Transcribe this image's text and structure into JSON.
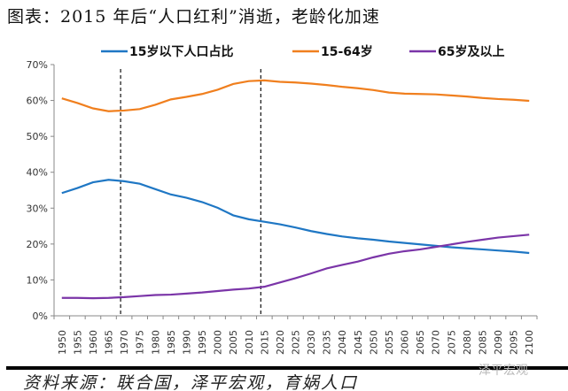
{
  "title": "图表：2015 年后“人口红利”消逝，老龄化加速",
  "source": "资料来源：联合国，泽平宏观，育娲人口",
  "watermark": "泽平宏观",
  "chart_data": {
    "type": "line",
    "title": "",
    "xlabel": "",
    "ylabel": "",
    "ylim": [
      0,
      70
    ],
    "yticks": [
      "0%",
      "10%",
      "20%",
      "30%",
      "40%",
      "50%",
      "60%",
      "70%"
    ],
    "grid": false,
    "legend": "top",
    "categories": [
      "1950",
      "1955",
      "1960",
      "1965",
      "1970",
      "1975",
      "1980",
      "1985",
      "1990",
      "1995",
      "2000",
      "2005",
      "2010",
      "2015",
      "2020",
      "2025",
      "2030",
      "2035",
      "2040",
      "2045",
      "2050",
      "2055",
      "2060",
      "2065",
      "2070",
      "2075",
      "2080",
      "2085",
      "2090",
      "2095",
      "2100"
    ],
    "vlines": [
      "1970",
      "2015"
    ],
    "series": [
      {
        "name": "15岁以下人口占比",
        "color": "#1f77c4",
        "values": [
          34.2,
          35.6,
          37.2,
          37.9,
          37.5,
          36.8,
          35.3,
          33.8,
          32.9,
          31.7,
          30.1,
          28.0,
          26.9,
          26.2,
          25.5,
          24.6,
          23.6,
          22.8,
          22.1,
          21.6,
          21.2,
          20.7,
          20.3,
          19.9,
          19.5,
          19.1,
          18.8,
          18.5,
          18.2,
          17.9,
          17.5
        ]
      },
      {
        "name": "15-64岁",
        "color": "#f07f1e",
        "values": [
          60.6,
          59.3,
          57.8,
          57.0,
          57.2,
          57.6,
          58.8,
          60.3,
          61.0,
          61.8,
          63.0,
          64.6,
          65.4,
          65.6,
          65.2,
          65.0,
          64.7,
          64.3,
          63.8,
          63.4,
          62.9,
          62.2,
          61.9,
          61.8,
          61.7,
          61.4,
          61.1,
          60.7,
          60.4,
          60.2,
          59.9
        ]
      },
      {
        "name": "65岁及以上",
        "color": "#7b35a8",
        "values": [
          5.0,
          5.0,
          4.9,
          5.0,
          5.2,
          5.5,
          5.8,
          5.9,
          6.2,
          6.5,
          6.9,
          7.3,
          7.6,
          8.1,
          9.3,
          10.5,
          11.8,
          13.2,
          14.2,
          15.1,
          16.3,
          17.3,
          18.0,
          18.5,
          19.2,
          19.9,
          20.6,
          21.2,
          21.8,
          22.2,
          22.6
        ]
      }
    ]
  }
}
